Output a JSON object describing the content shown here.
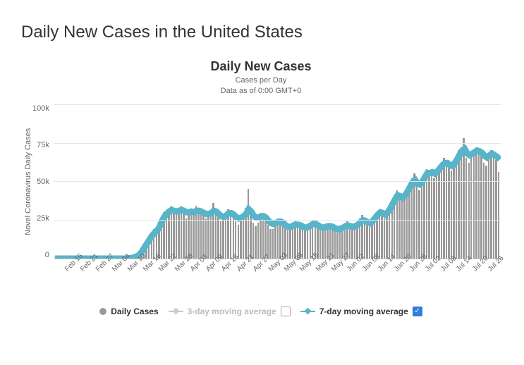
{
  "page_title": "Daily New Cases in the United States",
  "chart": {
    "type": "bar-with-line",
    "title": "Daily New Cases",
    "subtitle_line1": "Cases per Day",
    "subtitle_line2": "Data as of 0:00 GMT+0",
    "y_axis_title": "Novel Coronavirus Daily Cases",
    "y_ticks": [
      "100k",
      "75k",
      "50k",
      "25k",
      "0"
    ],
    "y_max": 100000,
    "x_labels": [
      "Feb 15",
      "Feb 21",
      "Feb 27",
      "Mar 04",
      "Mar 10",
      "Mar 16",
      "Mar 22",
      "Mar 28",
      "Apr 03",
      "Apr 09",
      "Apr 15",
      "Apr 21",
      "Apr 27",
      "May 03",
      "May 09",
      "May 15",
      "May 21",
      "May 27",
      "Jun 02",
      "Jun 08",
      "Jun 14",
      "Jun 20",
      "Jun 26",
      "Jul 02",
      "Jul 08",
      "Jul 14",
      "Jul 20",
      "Jul 26"
    ],
    "bar_color": "#999999",
    "line_color": "#58b4c9",
    "grid_color": "#e6e6e6",
    "background_color": "#ffffff",
    "daily_values": [
      0,
      0,
      0,
      0,
      0,
      0,
      0,
      0,
      0,
      0,
      0,
      0,
      0,
      0,
      0,
      0,
      0,
      0,
      0,
      0,
      0,
      0,
      0,
      0,
      0,
      0,
      0,
      0,
      0,
      200,
      400,
      600,
      1000,
      2000,
      3500,
      6000,
      9000,
      11000,
      14000,
      17000,
      19000,
      20000,
      22000,
      27000,
      30000,
      30500,
      32000,
      34000,
      31000,
      29000,
      33000,
      34000,
      30000,
      26000,
      29000,
      31000,
      28000,
      34000,
      32000,
      31000,
      28000,
      26000,
      27000,
      29000,
      36000,
      30000,
      27000,
      24000,
      25000,
      29000,
      32000,
      30000,
      27000,
      24000,
      22000,
      25000,
      28000,
      33000,
      45000,
      30000,
      23000,
      21000,
      23000,
      29000,
      27000,
      25000,
      22000,
      19000,
      19000,
      22000,
      26000,
      25000,
      23000,
      20000,
      18000,
      19000,
      23000,
      24000,
      23000,
      22000,
      19000,
      18000,
      20000,
      22000,
      25000,
      23000,
      21000,
      19000,
      18000,
      19000,
      22000,
      21000,
      20000,
      18000,
      17000,
      21000,
      20000,
      22000,
      24000,
      21000,
      20000,
      21000,
      23000,
      26000,
      28000,
      25000,
      22000,
      21000,
      24000,
      28000,
      30000,
      32000,
      28000,
      26000,
      30000,
      34000,
      38000,
      41000,
      44000,
      40000,
      38000,
      40000,
      45000,
      48000,
      52000,
      55000,
      47000,
      44000,
      48000,
      53000,
      58000,
      54000,
      58000,
      52000,
      56000,
      60000,
      62000,
      65000,
      63000,
      60000,
      57000,
      62000,
      66000,
      70000,
      72000,
      78000,
      65000,
      62000,
      66000,
      68000,
      72000,
      68000,
      67000,
      62000,
      60000,
      66000,
      70000,
      66000,
      64000,
      56000
    ],
    "ma7_values": [
      0,
      0,
      0,
      0,
      0,
      0,
      0,
      0,
      0,
      0,
      0,
      0,
      0,
      0,
      0,
      0,
      0,
      0,
      0,
      0,
      0,
      0,
      0,
      0,
      0,
      0,
      0,
      0,
      0,
      100,
      250,
      450,
      800,
      1500,
      2500,
      4500,
      7000,
      9500,
      12000,
      14500,
      16500,
      18000,
      20000,
      24000,
      27000,
      29000,
      30500,
      31500,
      31000,
      30500,
      31000,
      31500,
      31000,
      30000,
      30000,
      30500,
      30000,
      31000,
      31000,
      30500,
      29500,
      29000,
      29000,
      29500,
      31000,
      30500,
      29000,
      27500,
      27000,
      28000,
      29500,
      29500,
      28500,
      27000,
      26000,
      26500,
      27500,
      29000,
      32000,
      30500,
      28000,
      26500,
      26500,
      27500,
      27500,
      26500,
      24500,
      23000,
      22500,
      23000,
      24000,
      24000,
      23000,
      21500,
      20500,
      20500,
      21500,
      22000,
      22000,
      21500,
      20500,
      20000,
      20500,
      21500,
      22500,
      22500,
      21500,
      20500,
      20000,
      20500,
      21000,
      21000,
      20500,
      19500,
      19000,
      19500,
      20000,
      21000,
      21500,
      21000,
      20500,
      21000,
      22000,
      23500,
      25000,
      24500,
      23500,
      23000,
      24500,
      26500,
      28500,
      30000,
      29500,
      28500,
      30000,
      32500,
      35500,
      38500,
      41000,
      40500,
      39500,
      41000,
      43500,
      46500,
      49500,
      51000,
      48500,
      48000,
      50000,
      53000,
      55500,
      55500,
      56000,
      55000,
      56500,
      58500,
      60500,
      62000,
      62000,
      60500,
      60000,
      62000,
      64500,
      67500,
      70000,
      71000,
      68000,
      67000,
      68000,
      69000,
      70000,
      69500,
      68500,
      66500,
      65500,
      67000,
      68000,
      67000,
      66000,
      64000
    ]
  },
  "legend": {
    "items": [
      {
        "key": "daily",
        "label": "Daily Cases",
        "dim": false,
        "marker": "dot",
        "color": "#999999",
        "checkbox": null
      },
      {
        "key": "ma3",
        "label": "3-day moving average",
        "dim": true,
        "marker": "line-diamond",
        "color": "#cccccc",
        "checkbox": false
      },
      {
        "key": "ma7",
        "label": "7-day moving average",
        "dim": false,
        "marker": "line-diamond",
        "color": "#58b4c9",
        "checkbox": true
      }
    ]
  }
}
